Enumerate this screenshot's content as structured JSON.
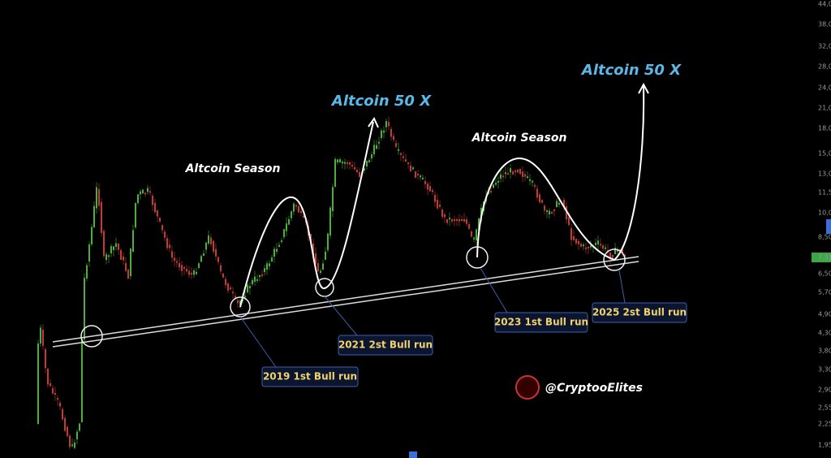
{
  "annotations": {
    "season_left": "Altcoin Season",
    "season_right": "Altcoin Season",
    "target_left": "Altcoin 50 X",
    "target_right": "Altcoin 50 X"
  },
  "bull_runs": [
    "2019 1st Bull run",
    "2021 2st Bull run",
    "2023 1st Bull run",
    "2025 2st Bull run"
  ],
  "watermark": "@CryptooElites",
  "price_axis": [
    "44,0",
    "38,0",
    "32,0",
    "28,0",
    "24,0",
    "21,0",
    "18,0",
    "15,0",
    "13,0",
    "11,5",
    "10,0",
    "8,50",
    "7,31",
    "6,50",
    "5,70",
    "4,90",
    "4,30",
    "3,80",
    "3,30",
    "2,90",
    "2,55",
    "2,25",
    "1,95"
  ]
}
